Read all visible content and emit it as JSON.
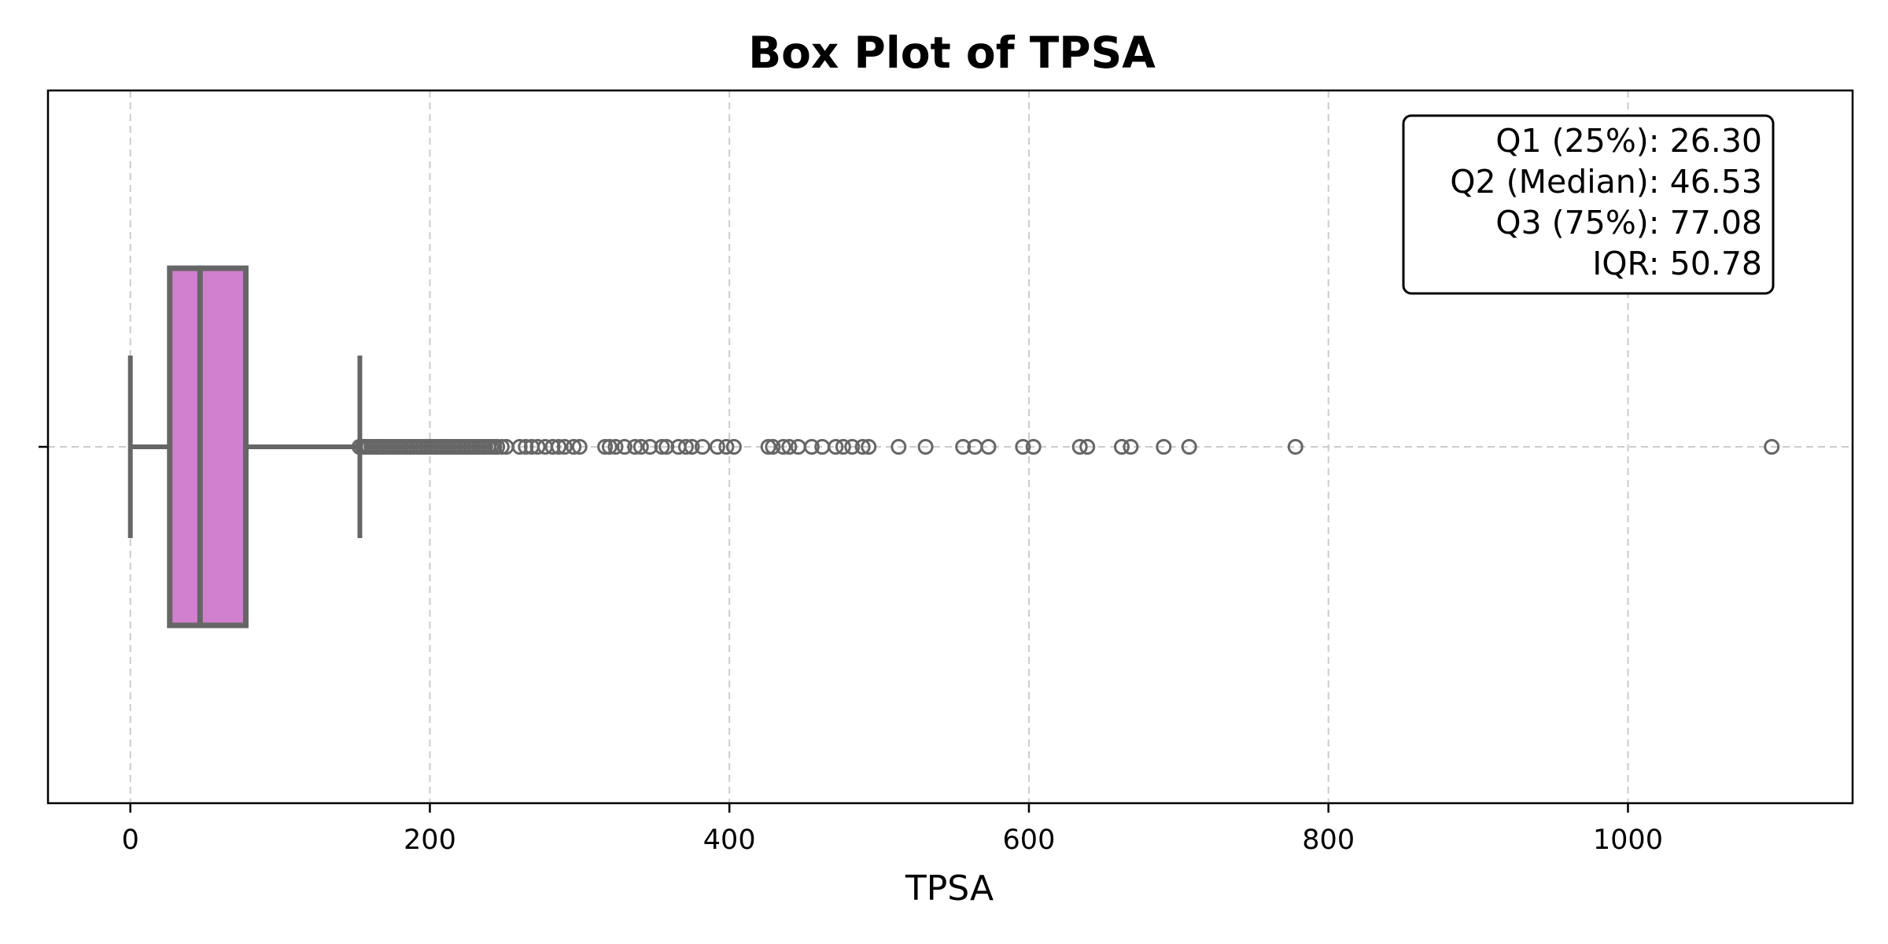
{
  "chart_data": {
    "type": "box",
    "title": "Box Plot of TPSA",
    "xlabel": "TPSA",
    "ylabel": "",
    "xlim": [
      -55,
      1150
    ],
    "x_ticks": [
      0,
      200,
      400,
      600,
      800,
      1000
    ],
    "grid": true,
    "box": {
      "whisker_low": 0,
      "q1": 26.3,
      "median": 46.53,
      "q3": 77.08,
      "whisker_high": 153.25,
      "fill_color": "#d17fcf",
      "line_color": "#666666"
    },
    "outliers": [
      153,
      155,
      157,
      159,
      161,
      163,
      165,
      167,
      169,
      171,
      173,
      175,
      177,
      179,
      181,
      183,
      185,
      187,
      189,
      191,
      193,
      195,
      197,
      199,
      201,
      203,
      205,
      207,
      209,
      211,
      213,
      215,
      217,
      219,
      221,
      223,
      225,
      227,
      229,
      231,
      233,
      235,
      237,
      239,
      241,
      243,
      245,
      248,
      251,
      260,
      264,
      268,
      272,
      277,
      282,
      286,
      290,
      296,
      300,
      317,
      320,
      324,
      330,
      337,
      341,
      347,
      355,
      358,
      366,
      371,
      375,
      382,
      392,
      398,
      403,
      426,
      429,
      436,
      440,
      446,
      455,
      462,
      471,
      476,
      482,
      489,
      493,
      513,
      531,
      556,
      564,
      573,
      596,
      603,
      634,
      639,
      662,
      668,
      690,
      707,
      778,
      1096
    ],
    "stats": {
      "lines": [
        "Q1 (25%): 26.30",
        "Q2 (Median): 46.53",
        "Q3 (75%): 77.08",
        "IQR: 50.78"
      ],
      "placement": "top-right"
    }
  }
}
